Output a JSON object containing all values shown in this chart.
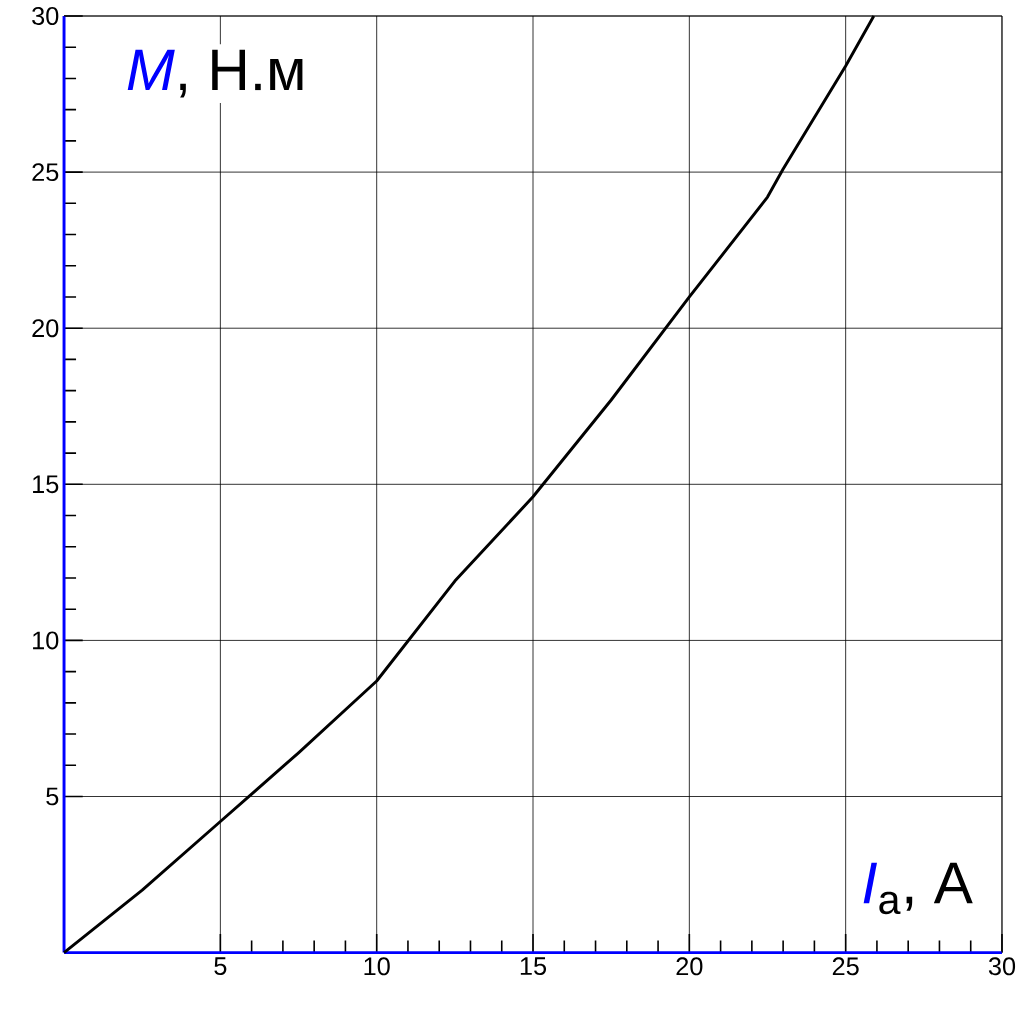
{
  "chart_data": {
    "type": "line",
    "xlabel": "*I*$_{a}$, A",
    "ylabel": "*M*, Н.м",
    "x": [
      0,
      2.5,
      5,
      7.5,
      10,
      12.5,
      15,
      17.5,
      20,
      22.5,
      23,
      25,
      25.9
    ],
    "series": [
      {
        "color": "#000000",
        "values": [
          0,
          2.0,
          4.2,
          6.4,
          8.7,
          11.9,
          14.6,
          17.7,
          21.0,
          24.2,
          25.1,
          28.4,
          30
        ]
      }
    ],
    "xlim": [
      0,
      30
    ],
    "ylim": [
      0,
      30
    ],
    "xticks": [
      5,
      10,
      15,
      20,
      25,
      30
    ],
    "yticks": [
      5,
      10,
      15,
      20,
      25,
      30
    ],
    "grid": true,
    "marker": "none",
    "line_style": "solid"
  }
}
